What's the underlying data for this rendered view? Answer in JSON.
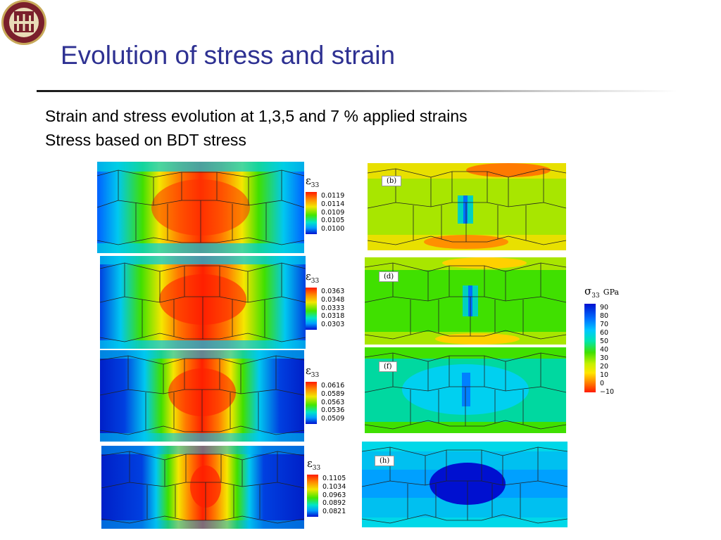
{
  "slide": {
    "title": "Evolution of stress and strain",
    "subtitle_line1": "Strain and stress evolution at 1,3,5 and 7 % applied strains",
    "subtitle_line2": "Stress based on BDT stress",
    "seal_text": "FLORIDA STATE UNIVERSITY 1851"
  },
  "strain_legends": [
    {
      "symbol": "ε",
      "sub": "33",
      "values": [
        "0.0119",
        "0.0114",
        "0.0109",
        "0.0105",
        "0.0100"
      ]
    },
    {
      "symbol": "ε",
      "sub": "33",
      "values": [
        "0.0363",
        "0.0348",
        "0.0333",
        "0.0318",
        "0.0303"
      ]
    },
    {
      "symbol": "ε",
      "sub": "33",
      "values": [
        "0.0616",
        "0.0589",
        "0.0563",
        "0.0536",
        "0.0509"
      ]
    },
    {
      "symbol": "ε",
      "sub": "33",
      "values": [
        "0.1105",
        "0.1034",
        "0.0963",
        "0.0892",
        "0.0821"
      ]
    }
  ],
  "panel_labels": [
    "(b)",
    "(d)",
    "(f)",
    "(h)"
  ],
  "stress_legend": {
    "symbol": "σ",
    "sub": "33",
    "unit": "GPa",
    "values": [
      "90",
      "80",
      "70",
      "60",
      "50",
      "40",
      "30",
      "20",
      "10",
      "0",
      "−10"
    ]
  },
  "colors": {
    "title": "#2e3192",
    "seal_maroon": "#7a1f2b",
    "seal_gold": "#c8a95a"
  }
}
